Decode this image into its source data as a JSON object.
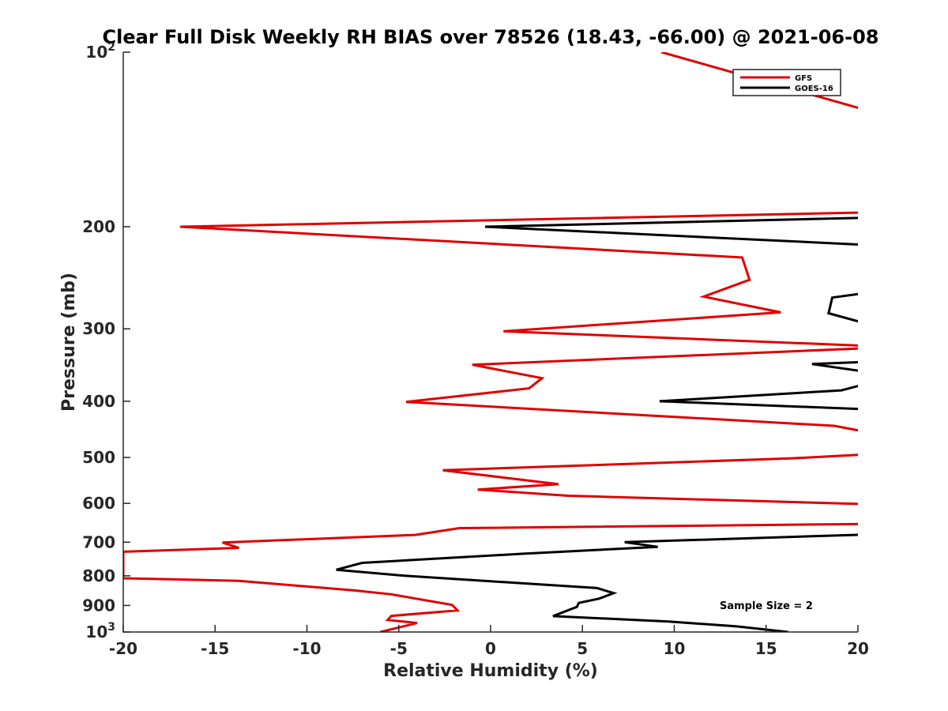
{
  "chart_data": {
    "type": "line",
    "title": "Clear Full Disk Weekly RH BIAS over 78526 (18.43, -66.00) @ 2021-06-08",
    "xlabel": "Relative Humidity (%)",
    "ylabel": "Pressure (mb)",
    "xlim": [
      -20,
      20
    ],
    "ylim": [
      100,
      1000
    ],
    "y_scale": "log",
    "y_reversed": true,
    "x_ticks": [
      "-20",
      "-15",
      "-10",
      "-5",
      "0",
      "5",
      "10",
      "15",
      "20"
    ],
    "y_ticks": [
      {
        "value": 100,
        "base": "10",
        "exp": "2"
      },
      {
        "value": 200,
        "base": "200",
        "exp": ""
      },
      {
        "value": 300,
        "base": "300",
        "exp": ""
      },
      {
        "value": 400,
        "base": "400",
        "exp": ""
      },
      {
        "value": 500,
        "base": "500",
        "exp": ""
      },
      {
        "value": 600,
        "base": "600",
        "exp": ""
      },
      {
        "value": 700,
        "base": "700",
        "exp": ""
      },
      {
        "value": 800,
        "base": "800",
        "exp": ""
      },
      {
        "value": 900,
        "base": "900",
        "exp": ""
      },
      {
        "value": 1000,
        "base": "10",
        "exp": "3"
      }
    ],
    "legend": {
      "position": "top-right"
    },
    "annotation": "Sample Size = 2",
    "series": [
      {
        "name": "GFS",
        "color": "#e00000",
        "points": [
          [
            9.3,
            100
          ],
          [
            20.5,
            126
          ],
          [
            20.5,
            189
          ],
          [
            -16.9,
            200
          ],
          [
            13.7,
            226
          ],
          [
            14.1,
            247
          ],
          [
            11.6,
            264
          ],
          [
            15.8,
            281
          ],
          [
            0.7,
            303
          ],
          [
            20.5,
            321
          ],
          [
            20.5,
            324
          ],
          [
            -1.0,
            346
          ],
          [
            2.8,
            365
          ],
          [
            2.1,
            380
          ],
          [
            -4.6,
            401
          ],
          [
            18.7,
            441
          ],
          [
            20.5,
            452
          ],
          [
            20.5,
            494
          ],
          [
            16.3,
            502
          ],
          [
            -2.6,
            526
          ],
          [
            3.7,
            556
          ],
          [
            -0.7,
            568
          ],
          [
            4.2,
            582
          ],
          [
            20.5,
            602
          ],
          [
            20.5,
            651
          ],
          [
            -1.7,
            662
          ],
          [
            -4.1,
            680
          ],
          [
            -14.6,
            701
          ],
          [
            -13.7,
            716
          ],
          [
            -20,
            727
          ],
          [
            -20,
            808
          ],
          [
            -13.7,
            816
          ],
          [
            -7.4,
            848
          ],
          [
            -5.4,
            861
          ],
          [
            -2.1,
            898
          ],
          [
            -1.8,
            918
          ],
          [
            -5.4,
            938
          ],
          [
            -5.6,
            953
          ],
          [
            -4.0,
            965
          ],
          [
            -6.0,
            1000
          ]
        ]
      },
      {
        "name": "GOES-16",
        "color": "#000000",
        "points": [
          [
            20.5,
            193
          ],
          [
            -0.3,
            200
          ],
          [
            20.5,
            215
          ],
          [
            20.5,
            260
          ],
          [
            18.6,
            265
          ],
          [
            18.4,
            282
          ],
          [
            20.5,
            294
          ],
          [
            20.5,
            342
          ],
          [
            17.5,
            345
          ],
          [
            20.5,
            356
          ],
          [
            20.5,
            373
          ],
          [
            19.1,
            383
          ],
          [
            9.2,
            400
          ],
          [
            20.5,
            413
          ],
          [
            20.5,
            679
          ],
          [
            7.3,
            700
          ],
          [
            9.1,
            713
          ],
          [
            1.7,
            733
          ],
          [
            -7.0,
            760
          ],
          [
            -8.4,
            781
          ],
          [
            -4.6,
            800
          ],
          [
            5.8,
            840
          ],
          [
            6.7,
            857
          ],
          [
            5.9,
            876
          ],
          [
            4.8,
            891
          ],
          [
            4.7,
            905
          ],
          [
            3.4,
            939
          ],
          [
            9.7,
            959
          ],
          [
            13.4,
            978
          ],
          [
            16.2,
            1000
          ]
        ]
      }
    ]
  }
}
